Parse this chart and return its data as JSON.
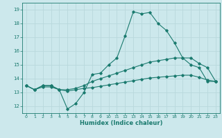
{
  "xlabel": "Humidex (Indice chaleur)",
  "ylabel": "",
  "bg_color": "#cce8ec",
  "line_color": "#1a7a6e",
  "grid_color": "#b8d8dc",
  "x_ticks": [
    0,
    1,
    2,
    3,
    4,
    5,
    6,
    7,
    8,
    9,
    10,
    11,
    12,
    13,
    14,
    15,
    16,
    17,
    18,
    19,
    20,
    21,
    22,
    23
  ],
  "y_ticks": [
    12,
    13,
    14,
    15,
    16,
    17,
    18,
    19
  ],
  "xlim": [
    -0.5,
    23.5
  ],
  "ylim": [
    11.5,
    19.5
  ],
  "line1_y": [
    13.5,
    13.2,
    13.5,
    13.5,
    13.2,
    11.8,
    12.2,
    13.0,
    14.3,
    14.4,
    15.0,
    15.5,
    17.1,
    18.85,
    18.7,
    18.8,
    18.0,
    17.5,
    16.6,
    15.5,
    15.0,
    14.8,
    13.8,
    13.8
  ],
  "line2_y": [
    13.5,
    13.2,
    13.5,
    13.5,
    13.2,
    13.2,
    13.3,
    13.5,
    13.8,
    14.0,
    14.2,
    14.4,
    14.6,
    14.8,
    15.0,
    15.2,
    15.3,
    15.4,
    15.5,
    15.5,
    15.5,
    15.1,
    14.8,
    13.8
  ],
  "line3_y": [
    13.5,
    13.2,
    13.4,
    13.4,
    13.2,
    13.1,
    13.2,
    13.3,
    13.35,
    13.45,
    13.55,
    13.65,
    13.75,
    13.85,
    13.95,
    14.05,
    14.1,
    14.15,
    14.2,
    14.25,
    14.25,
    14.1,
    13.9,
    13.8
  ]
}
